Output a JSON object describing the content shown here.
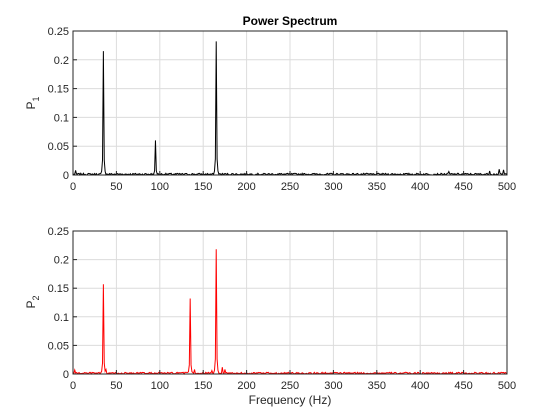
{
  "chart_data": [
    {
      "type": "line",
      "title": "Power Spectrum",
      "xlabel": "",
      "ylabel": "P",
      "ylabel_subscript": "1",
      "xlim": [
        0,
        500
      ],
      "ylim": [
        0,
        0.25
      ],
      "xticks": [
        "0",
        "50",
        "100",
        "150",
        "200",
        "250",
        "300",
        "350",
        "400",
        "450",
        "500"
      ],
      "yticks": [
        "0",
        "0.05",
        "0.1",
        "0.15",
        "0.2",
        "0.25"
      ],
      "grid": true,
      "color": "#000000",
      "noise_level": 0.003,
      "peaks": [
        {
          "x": 35,
          "y": 0.215
        },
        {
          "x": 95,
          "y": 0.06
        },
        {
          "x": 165,
          "y": 0.232
        }
      ],
      "small_features": [
        {
          "x": 3,
          "y": 0.008
        },
        {
          "x": 433,
          "y": 0.006
        },
        {
          "x": 480,
          "y": 0.007
        },
        {
          "x": 491,
          "y": 0.01
        },
        {
          "x": 496,
          "y": 0.009
        }
      ]
    },
    {
      "type": "line",
      "title": "",
      "xlabel": "Frequency (Hz)",
      "ylabel": "P",
      "ylabel_subscript": "2",
      "xlim": [
        0,
        500
      ],
      "ylim": [
        0,
        0.25
      ],
      "xticks": [
        "0",
        "50",
        "100",
        "150",
        "200",
        "250",
        "300",
        "350",
        "400",
        "450",
        "500"
      ],
      "yticks": [
        "0",
        "0.05",
        "0.1",
        "0.15",
        "0.2",
        "0.25"
      ],
      "grid": true,
      "color": "#ff0000",
      "noise_level": 0.003,
      "peaks": [
        {
          "x": 35,
          "y": 0.157
        },
        {
          "x": 135,
          "y": 0.132
        },
        {
          "x": 165,
          "y": 0.218
        }
      ],
      "small_features": [
        {
          "x": 2,
          "y": 0.007
        },
        {
          "x": 38,
          "y": 0.008
        },
        {
          "x": 140,
          "y": 0.008
        },
        {
          "x": 160,
          "y": 0.006
        },
        {
          "x": 172,
          "y": 0.012
        },
        {
          "x": 175,
          "y": 0.008
        }
      ]
    }
  ]
}
